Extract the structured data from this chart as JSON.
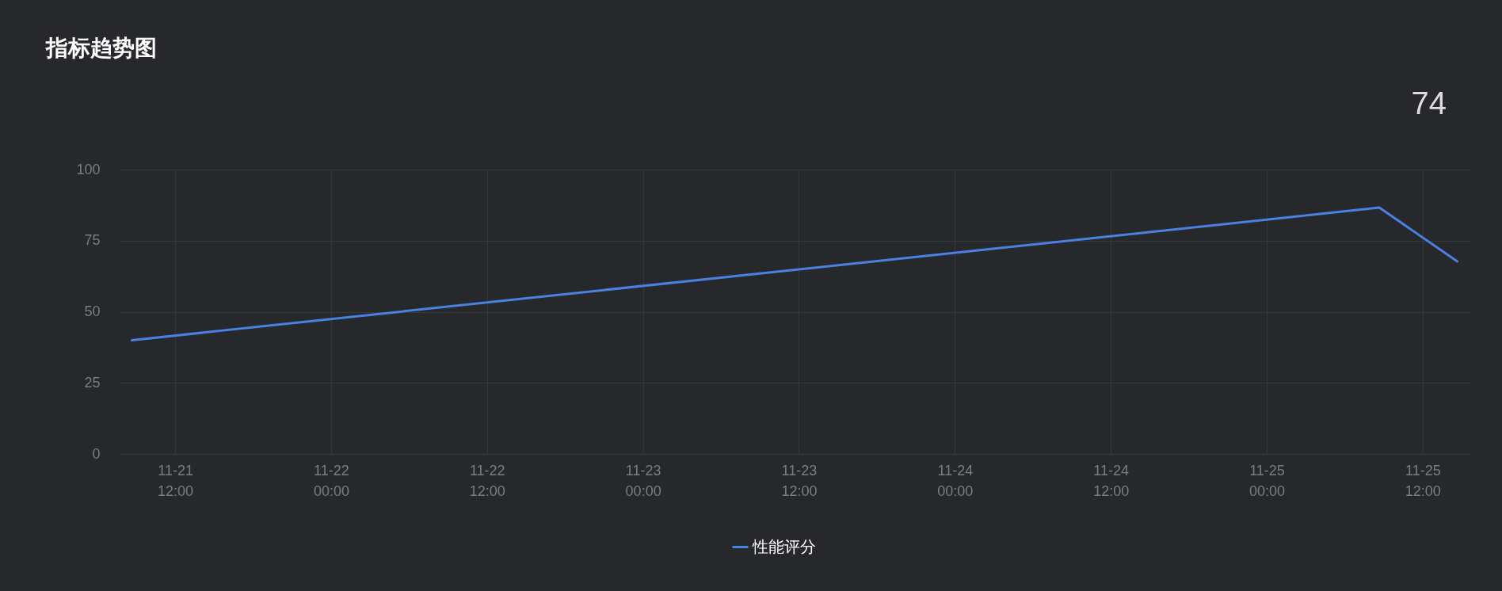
{
  "chart_data": {
    "type": "line",
    "title": "指标趋势图",
    "annotations": [
      "74"
    ],
    "x": [
      "--11-21T08:40",
      "--11-25T08:40",
      "--11-25T14:40"
    ],
    "series": [
      {
        "name": "性能评分",
        "color": "#4a80e2",
        "values": [
          40,
          86.6,
          67.7
        ]
      }
    ],
    "xlim": [
      "--11-21T07:40",
      "--11-25T15:40"
    ],
    "xticks": [
      {
        "value": "--11-21T12:00",
        "label": "11-21 12:00"
      },
      {
        "value": "--11-22T00:00",
        "label": "11-22 00:00"
      },
      {
        "value": "--11-22T12:00",
        "label": "11-22 12:00"
      },
      {
        "value": "--11-23T00:00",
        "label": "11-23 00:00"
      },
      {
        "value": "--11-23T12:00",
        "label": "11-23 12:00"
      },
      {
        "value": "--11-24T00:00",
        "label": "11-24 00:00"
      },
      {
        "value": "--11-24T12:00",
        "label": "11-24 12:00"
      },
      {
        "value": "--11-25T00:00",
        "label": "11-25 00:00"
      },
      {
        "value": "--11-25T12:00",
        "label": "11-25 12:00"
      }
    ],
    "ylim": [
      0,
      100
    ],
    "yticks": [
      0,
      25,
      50,
      75,
      100
    ],
    "grid": true,
    "legend": "bottom",
    "marker": "none",
    "line_style": "solid"
  }
}
